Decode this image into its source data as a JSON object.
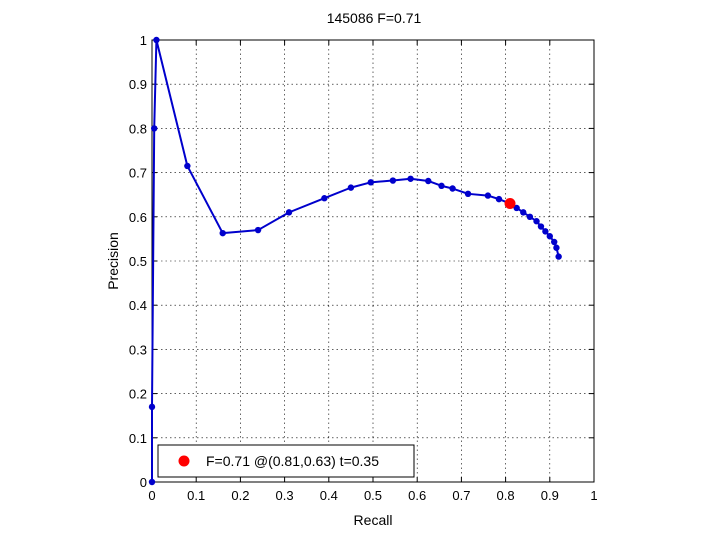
{
  "chart_data": {
    "type": "line",
    "title": "145086 F=0.71",
    "xlabel": "Recall",
    "ylabel": "Precision",
    "xlim": [
      0,
      1
    ],
    "ylim": [
      0,
      1
    ],
    "xticks": [
      0,
      0.1,
      0.2,
      0.3,
      0.4,
      0.5,
      0.6,
      0.7,
      0.8,
      0.9,
      1
    ],
    "yticks": [
      0,
      0.1,
      0.2,
      0.3,
      0.4,
      0.5,
      0.6,
      0.7,
      0.8,
      0.9,
      1
    ],
    "xtick_labels": [
      "0",
      "0.1",
      "0.2",
      "0.3",
      "0.4",
      "0.5",
      "0.6",
      "0.7",
      "0.8",
      "0.9",
      "1"
    ],
    "ytick_labels": [
      "0",
      "0.1",
      "0.2",
      "0.3",
      "0.4",
      "0.5",
      "0.6",
      "0.7",
      "0.8",
      "0.9",
      "1"
    ],
    "grid": true,
    "legend_position": "bottom-left",
    "series": [
      {
        "color": "#0000cc",
        "points": [
          [
            0.0,
            0.0
          ],
          [
            0.0,
            0.17
          ],
          [
            0.005,
            0.8
          ],
          [
            0.01,
            1.0
          ],
          [
            0.08,
            0.715
          ],
          [
            0.16,
            0.563
          ],
          [
            0.24,
            0.57
          ],
          [
            0.31,
            0.61
          ],
          [
            0.39,
            0.642
          ],
          [
            0.45,
            0.666
          ],
          [
            0.495,
            0.678
          ],
          [
            0.545,
            0.682
          ],
          [
            0.585,
            0.686
          ],
          [
            0.625,
            0.681
          ],
          [
            0.655,
            0.67
          ],
          [
            0.68,
            0.664
          ],
          [
            0.715,
            0.652
          ],
          [
            0.76,
            0.648
          ],
          [
            0.785,
            0.64
          ],
          [
            0.81,
            0.63
          ],
          [
            0.825,
            0.62
          ],
          [
            0.84,
            0.61
          ],
          [
            0.855,
            0.6
          ],
          [
            0.87,
            0.59
          ],
          [
            0.88,
            0.578
          ],
          [
            0.89,
            0.567
          ],
          [
            0.9,
            0.556
          ],
          [
            0.91,
            0.543
          ],
          [
            0.915,
            0.53
          ],
          [
            0.92,
            0.51
          ]
        ]
      }
    ],
    "highlight_point": {
      "x": 0.81,
      "y": 0.63,
      "color": "#ff0000"
    },
    "legend": {
      "label": "F=0.71 @(0.81,0.63) t=0.35",
      "marker_color": "#ff0000"
    }
  }
}
